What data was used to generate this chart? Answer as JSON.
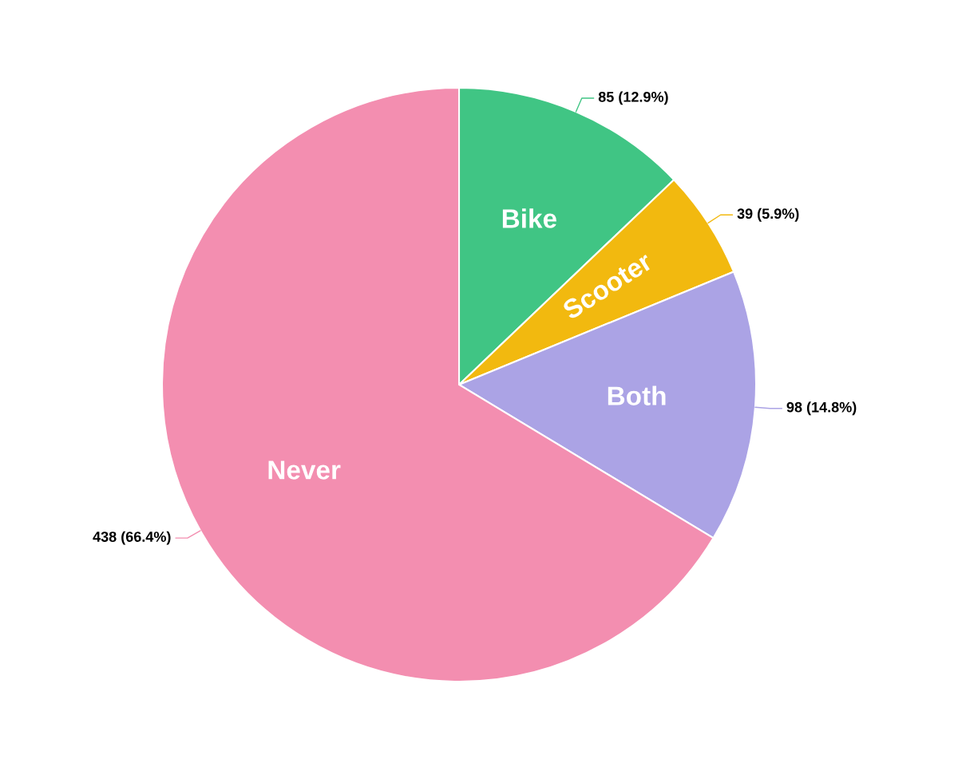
{
  "chart_data": {
    "type": "pie",
    "categories": [
      "Bike",
      "Scooter",
      "Both",
      "Never"
    ],
    "values": [
      85,
      39,
      98,
      438
    ],
    "colors": [
      "#40c584",
      "#f2b90f",
      "#aba3e5",
      "#f38eb0"
    ],
    "value_labels": [
      "85 (12.9%)",
      "39 (5.9%)",
      "98 (14.8%)",
      "438 (66.4%)"
    ],
    "legend": false
  }
}
